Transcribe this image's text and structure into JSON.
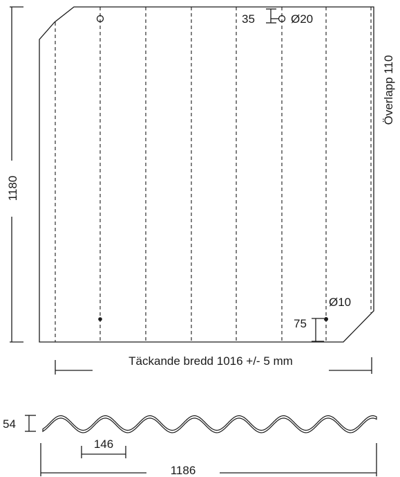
{
  "sheet": {
    "height_label": "1180",
    "overlap_label": "Överlapp  110",
    "top_hole_offset_label": "35",
    "top_hole_diameter_label": "Ø20",
    "bottom_hole_offset_label": "75",
    "bottom_hole_diameter_label": "Ø10",
    "covering_width_label": "Täckande bredd 1016 +/- 5 mm"
  },
  "profile": {
    "height_label": "54",
    "pitch_label": "146",
    "total_width_label": "1186"
  }
}
